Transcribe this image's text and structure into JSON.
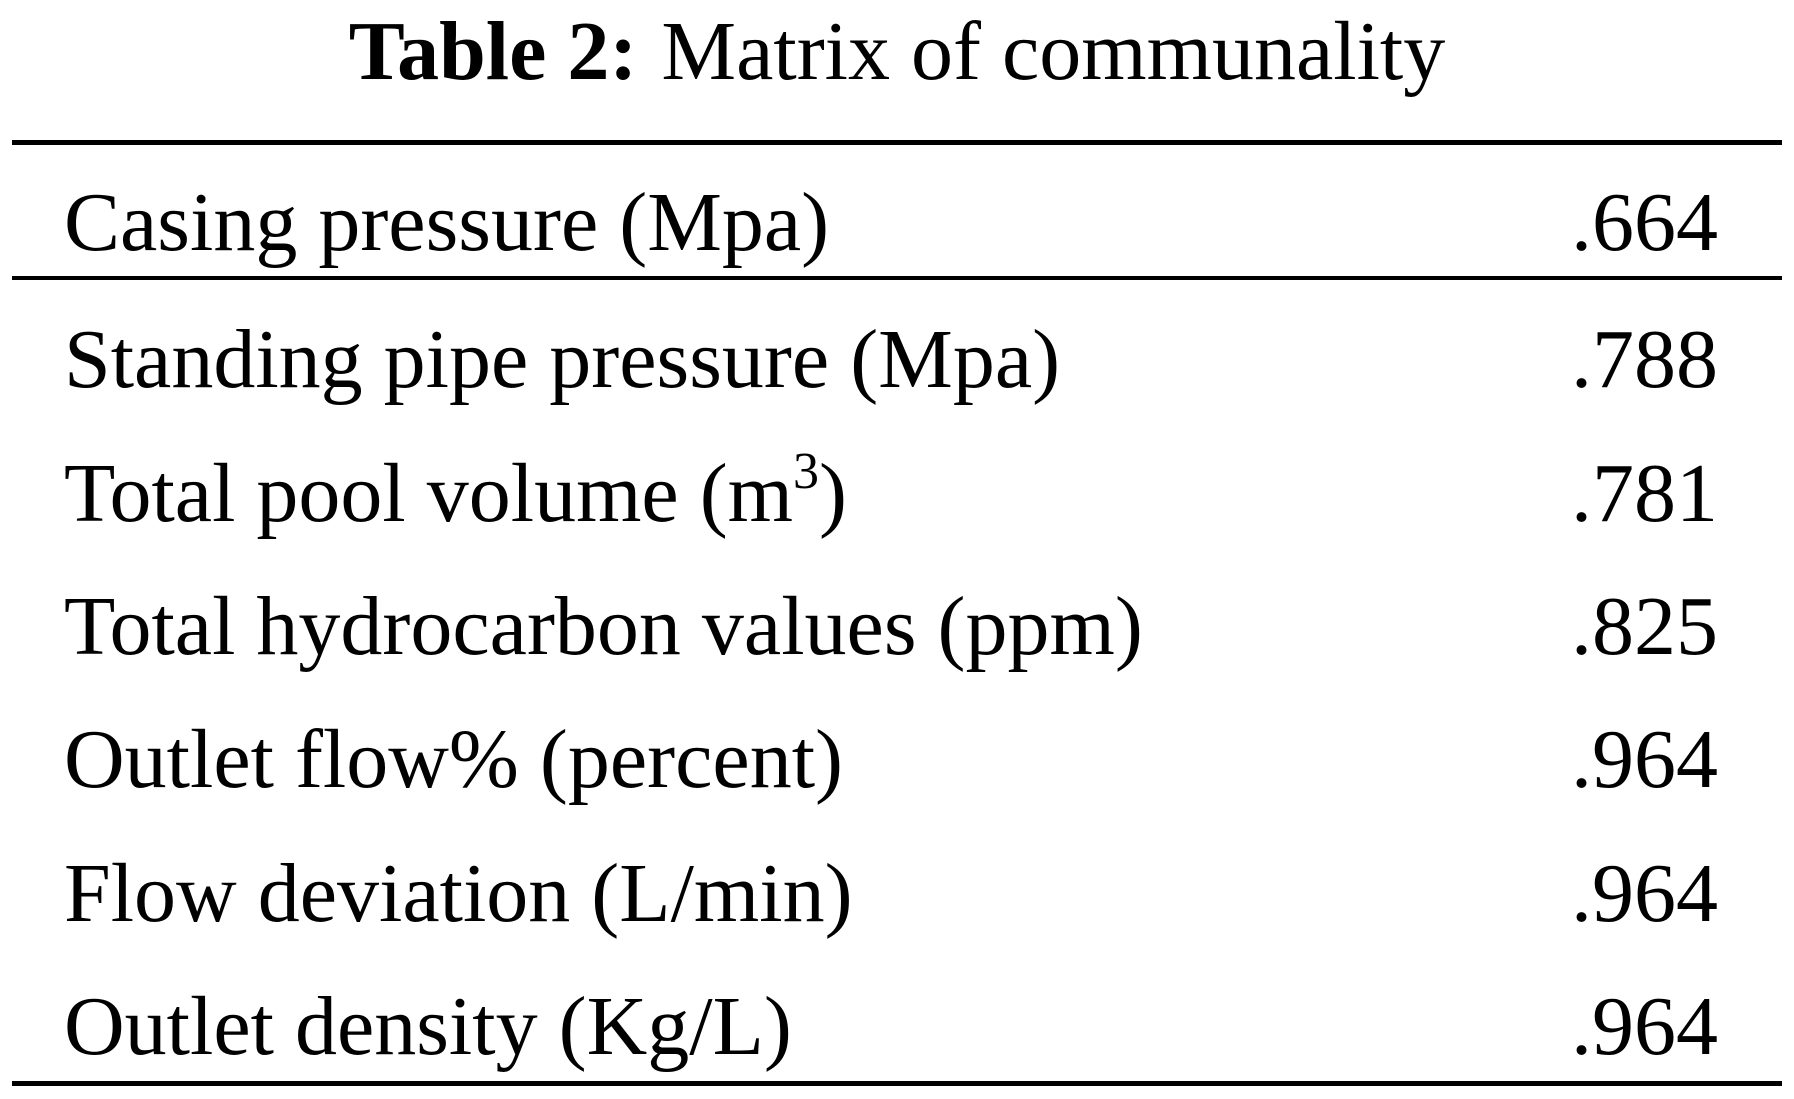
{
  "table": {
    "caption_label": "Table 2:",
    "caption_text": "Matrix of communality",
    "rows": [
      {
        "name": "Casing pressure (Mpa)",
        "value": ".664"
      },
      {
        "name": "Standing pipe pressure (Mpa)",
        "value": ".788"
      },
      {
        "name_before": "Total pool volume (m",
        "name_sup": "3",
        "name_after": ")",
        "value": ".781"
      },
      {
        "name": "Total hydrocarbon values (ppm)",
        "value": ".825"
      },
      {
        "name": "Outlet flow% (percent)",
        "value": ".964"
      },
      {
        "name": "Flow deviation (L/min)",
        "value": ".964"
      },
      {
        "name": "Outlet density (Kg/L)",
        "value": ".964"
      }
    ]
  }
}
